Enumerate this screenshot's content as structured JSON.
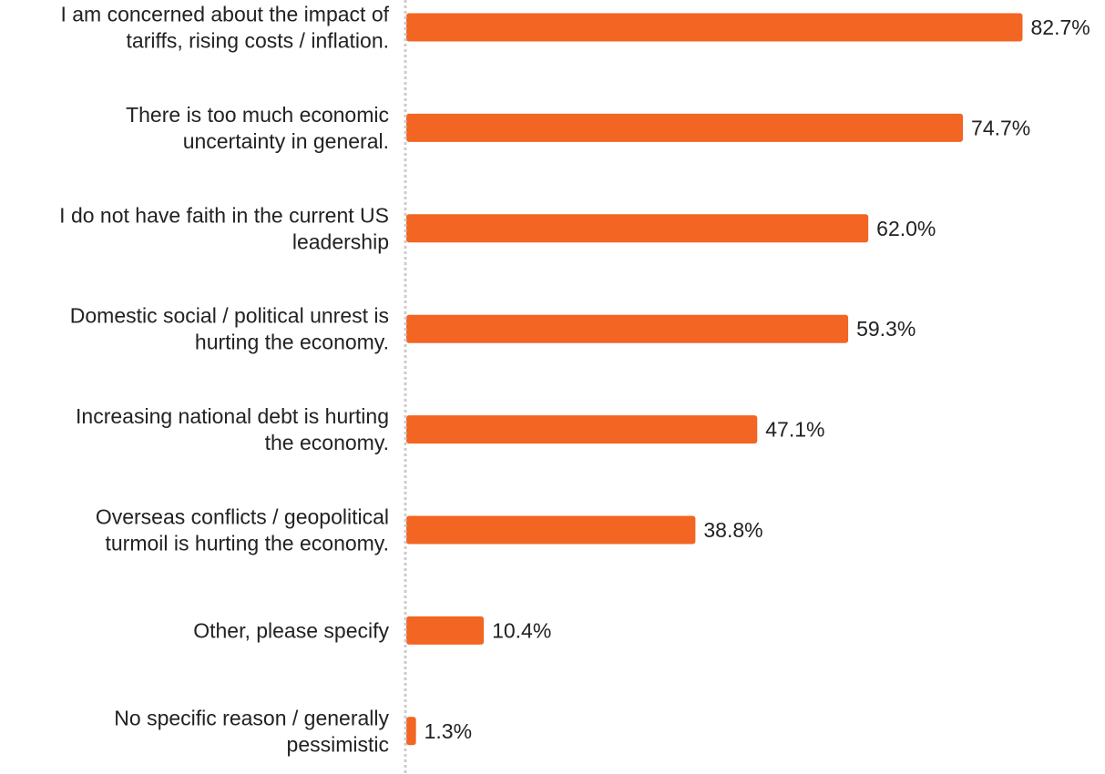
{
  "chart_data": {
    "type": "bar",
    "orientation": "horizontal",
    "categories": [
      [
        "I am concerned about the impact of",
        "tariffs, rising costs / inflation."
      ],
      [
        "There is too much economic",
        "uncertainty in general."
      ],
      [
        "I do not have faith in the current US",
        "leadership"
      ],
      [
        "Domestic social / political unrest is",
        "hurting the economy."
      ],
      [
        "Increasing national debt is hurting",
        "the economy."
      ],
      [
        "Overseas conflicts / geopolitical",
        "turmoil is hurting the economy."
      ],
      [
        "Other, please specify"
      ],
      [
        "No specific reason / generally",
        "pessimistic"
      ]
    ],
    "values": [
      82.7,
      74.7,
      62.0,
      59.3,
      47.1,
      38.8,
      10.4,
      1.3
    ],
    "value_labels": [
      "82.7%",
      "74.7%",
      "62.0%",
      "59.3%",
      "47.1%",
      "38.8%",
      "10.4%",
      "1.3%"
    ],
    "title": "",
    "xlabel": "",
    "ylabel": "",
    "xlim": [
      0,
      100
    ],
    "grid": false,
    "baseline": "dotted",
    "bar_color": "#f26522",
    "text_color": "#222222",
    "baseline_color": "#cccccc"
  }
}
